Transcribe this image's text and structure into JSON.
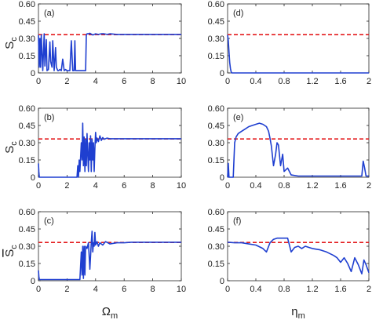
{
  "chart_data": [
    {
      "type": "line",
      "panel_label": "(a)",
      "ylabel": "S",
      "ylabel_sub": "c",
      "ylabel_bar": false,
      "xlabel": "",
      "xlabel_sub": "",
      "xlim": [
        0,
        10
      ],
      "ylim": [
        0,
        0.6
      ],
      "xticks": [
        "0",
        "2",
        "4",
        "6",
        "8",
        "10"
      ],
      "yticks": [
        "0",
        "0.15",
        "0.30",
        "0.45",
        "0.60"
      ],
      "reference_line": {
        "y": 0.333,
        "style": "dashed",
        "color": "#e31a1c"
      },
      "series": [
        {
          "color": "#1f3fd0",
          "x": [
            0,
            0.05,
            0.1,
            0.15,
            0.2,
            0.3,
            0.4,
            0.45,
            0.55,
            0.6,
            0.7,
            0.8,
            0.85,
            0.95,
            1.0,
            1.1,
            1.2,
            1.25,
            1.35,
            1.4,
            1.5,
            1.6,
            1.7,
            1.8,
            1.9,
            2.0,
            2.1,
            2.2,
            2.3,
            2.4,
            2.5,
            2.55,
            2.6,
            2.7,
            2.8,
            2.9,
            3.0,
            3.1,
            3.2,
            3.3,
            3.35,
            3.4,
            3.5,
            3.6,
            3.8,
            4.0,
            4.2,
            4.4,
            4.6,
            4.8,
            5.0,
            5.5,
            6.0,
            7.0,
            8.0,
            9.0,
            10.0
          ],
          "y": [
            0.33,
            0.05,
            0.3,
            0.05,
            0.33,
            0.02,
            0.34,
            0.06,
            0.29,
            0.02,
            0.03,
            0.27,
            0.1,
            0.05,
            0.28,
            0.02,
            0.22,
            0.05,
            0.02,
            0.02,
            0.03,
            0.02,
            0.12,
            0.02,
            0.03,
            0.02,
            0.02,
            0.02,
            0.28,
            0.02,
            0.02,
            0.28,
            0.02,
            0.02,
            0.02,
            0.02,
            0.02,
            0.02,
            0.02,
            0.02,
            0.33,
            0.34,
            0.34,
            0.345,
            0.33,
            0.34,
            0.335,
            0.34,
            0.34,
            0.335,
            0.34,
            0.335,
            0.335,
            0.335,
            0.335,
            0.335,
            0.335
          ]
        }
      ]
    },
    {
      "type": "line",
      "panel_label": "(d)",
      "ylabel": "",
      "ylabel_sub": "",
      "ylabel_bar": false,
      "xlabel": "",
      "xlabel_sub": "",
      "xlim": [
        0,
        2
      ],
      "ylim": [
        0,
        0.6
      ],
      "xticks": [
        "0",
        "0.4",
        "0.8",
        "1.2",
        "1.6",
        "2"
      ],
      "yticks": [
        "0",
        "0.15",
        "0.30",
        "0.45",
        "0.60"
      ],
      "reference_line": {
        "y": 0.333,
        "style": "dashed",
        "color": "#e31a1c"
      },
      "series": [
        {
          "color": "#1f3fd0",
          "x": [
            0,
            0.01,
            0.02,
            0.03,
            0.04,
            0.05,
            0.06,
            0.1,
            0.5,
            1.0,
            1.5,
            2.0
          ],
          "y": [
            0.33,
            0.28,
            0.18,
            0.09,
            0.04,
            0.01,
            0.0,
            0.0,
            0.0,
            0.0,
            0.0,
            0.0
          ]
        }
      ]
    },
    {
      "type": "line",
      "panel_label": "(b)",
      "ylabel": "S",
      "ylabel_sub": "c",
      "ylabel_bar": false,
      "xlabel": "",
      "xlabel_sub": "",
      "xlim": [
        0,
        10
      ],
      "ylim": [
        0,
        0.6
      ],
      "xticks": [
        "0",
        "2",
        "4",
        "6",
        "8",
        "10"
      ],
      "yticks": [
        "0",
        "0.15",
        "0.30",
        "0.45",
        "0.60"
      ],
      "reference_line": {
        "y": 0.333,
        "style": "dashed",
        "color": "#e31a1c"
      },
      "series": [
        {
          "color": "#1f3fd0",
          "x": [
            0,
            0.03,
            0.06,
            0.5,
            1.0,
            1.5,
            2.0,
            2.5,
            2.7,
            2.75,
            2.8,
            2.85,
            2.9,
            3.0,
            3.05,
            3.1,
            3.15,
            3.2,
            3.25,
            3.3,
            3.35,
            3.4,
            3.45,
            3.5,
            3.55,
            3.6,
            3.65,
            3.7,
            3.75,
            3.8,
            3.85,
            3.9,
            3.95,
            4.0,
            4.05,
            4.1,
            4.2,
            4.3,
            4.4,
            4.5,
            4.6,
            4.8,
            5.0,
            5.5,
            6.0,
            7.0,
            8.0,
            9.0,
            10.0
          ],
          "y": [
            0.12,
            0.05,
            0.0,
            0.0,
            0.0,
            0.0,
            0.0,
            0.0,
            0.0,
            0.1,
            0.0,
            0.15,
            0.05,
            0.3,
            0.15,
            0.47,
            0.1,
            0.35,
            0.05,
            0.33,
            0.1,
            0.38,
            0.2,
            0.05,
            0.3,
            0.15,
            0.36,
            0.05,
            0.33,
            0.15,
            0.3,
            0.05,
            0.25,
            0.39,
            0.3,
            0.34,
            0.31,
            0.36,
            0.32,
            0.345,
            0.33,
            0.34,
            0.335,
            0.335,
            0.335,
            0.335,
            0.335,
            0.335,
            0.335
          ]
        }
      ]
    },
    {
      "type": "line",
      "panel_label": "(e)",
      "ylabel": "",
      "ylabel_sub": "",
      "ylabel_bar": false,
      "xlabel": "",
      "xlabel_sub": "",
      "xlim": [
        0,
        2
      ],
      "ylim": [
        0,
        0.6
      ],
      "xticks": [
        "0",
        "0.4",
        "0.8",
        "1.2",
        "1.6",
        "2"
      ],
      "yticks": [
        "0",
        "0.15",
        "0.30",
        "0.45",
        "0.60"
      ],
      "reference_line": {
        "y": 0.333,
        "style": "dashed",
        "color": "#e31a1c"
      },
      "series": [
        {
          "color": "#1f3fd0",
          "x": [
            0,
            0.01,
            0.02,
            0.05,
            0.08,
            0.1,
            0.12,
            0.15,
            0.2,
            0.25,
            0.3,
            0.35,
            0.4,
            0.45,
            0.5,
            0.55,
            0.58,
            0.6,
            0.62,
            0.65,
            0.68,
            0.7,
            0.72,
            0.75,
            0.78,
            0.8,
            0.85,
            0.9,
            1.0,
            1.2,
            1.4,
            1.6,
            1.8,
            1.9,
            1.92,
            1.94,
            1.96,
            2.0
          ],
          "y": [
            0.0,
            0.12,
            0.0,
            0.0,
            0.0,
            0.3,
            0.35,
            0.38,
            0.4,
            0.42,
            0.44,
            0.45,
            0.46,
            0.47,
            0.46,
            0.44,
            0.4,
            0.34,
            0.27,
            0.1,
            0.2,
            0.3,
            0.28,
            0.1,
            0.2,
            0.05,
            0.08,
            0.02,
            0.01,
            0.01,
            0.01,
            0.01,
            0.01,
            0.01,
            0.14,
            0.08,
            0.01,
            0.01
          ]
        }
      ]
    },
    {
      "type": "line",
      "panel_label": "(c)",
      "ylabel": "S",
      "ylabel_sub": "c",
      "ylabel_bar": true,
      "xlabel": "Ω",
      "xlabel_sub": "m",
      "xlim": [
        0,
        10
      ],
      "ylim": [
        0,
        0.6
      ],
      "xticks": [
        "0",
        "2",
        "4",
        "6",
        "8",
        "10"
      ],
      "yticks": [
        "0",
        "0.15",
        "0.30",
        "0.45",
        "0.60"
      ],
      "reference_line": {
        "y": 0.333,
        "style": "dashed",
        "color": "#e31a1c"
      },
      "series": [
        {
          "color": "#1f3fd0",
          "x": [
            0,
            0.03,
            0.06,
            0.5,
            1.0,
            1.5,
            2.0,
            2.5,
            2.9,
            3.0,
            3.05,
            3.1,
            3.15,
            3.2,
            3.25,
            3.3,
            3.4,
            3.5,
            3.6,
            3.7,
            3.75,
            3.8,
            3.85,
            3.9,
            3.95,
            4.0,
            4.1,
            4.2,
            4.3,
            4.5,
            4.7,
            5.0,
            5.5,
            6.0,
            6.5,
            7.0,
            8.0,
            9.0,
            10.0
          ],
          "y": [
            0.09,
            0.04,
            0.01,
            0.01,
            0.01,
            0.01,
            0.01,
            0.01,
            0.01,
            0.25,
            0.05,
            0.3,
            0.02,
            0.3,
            0.05,
            0.3,
            0.28,
            0.33,
            0.1,
            0.33,
            0.43,
            0.25,
            0.33,
            0.3,
            0.42,
            0.31,
            0.34,
            0.3,
            0.33,
            0.31,
            0.34,
            0.32,
            0.33,
            0.33,
            0.335,
            0.335,
            0.335,
            0.335,
            0.335
          ]
        }
      ]
    },
    {
      "type": "line",
      "panel_label": "(f)",
      "ylabel": "",
      "ylabel_sub": "",
      "ylabel_bar": false,
      "xlabel": "η",
      "xlabel_sub": "m",
      "xlim": [
        0,
        2
      ],
      "ylim": [
        0,
        0.6
      ],
      "xticks": [
        "0",
        "0.4",
        "0.8",
        "1.2",
        "1.6",
        "2"
      ],
      "yticks": [
        "0",
        "0.15",
        "0.30",
        "0.45",
        "0.60"
      ],
      "reference_line": {
        "y": 0.333,
        "style": "dashed",
        "color": "#e31a1c"
      },
      "series": [
        {
          "color": "#1f3fd0",
          "x": [
            0,
            0.1,
            0.2,
            0.3,
            0.4,
            0.5,
            0.55,
            0.6,
            0.65,
            0.7,
            0.75,
            0.8,
            0.85,
            0.9,
            0.95,
            1.0,
            1.05,
            1.1,
            1.15,
            1.2,
            1.3,
            1.4,
            1.5,
            1.55,
            1.6,
            1.65,
            1.7,
            1.75,
            1.8,
            1.85,
            1.9,
            1.93,
            1.96,
            2.0
          ],
          "y": [
            0.335,
            0.33,
            0.33,
            0.32,
            0.31,
            0.28,
            0.25,
            0.33,
            0.36,
            0.37,
            0.37,
            0.37,
            0.37,
            0.25,
            0.29,
            0.3,
            0.28,
            0.3,
            0.29,
            0.28,
            0.27,
            0.25,
            0.22,
            0.2,
            0.16,
            0.2,
            0.15,
            0.08,
            0.2,
            0.14,
            0.06,
            0.18,
            0.14,
            0.07
          ]
        }
      ]
    }
  ]
}
